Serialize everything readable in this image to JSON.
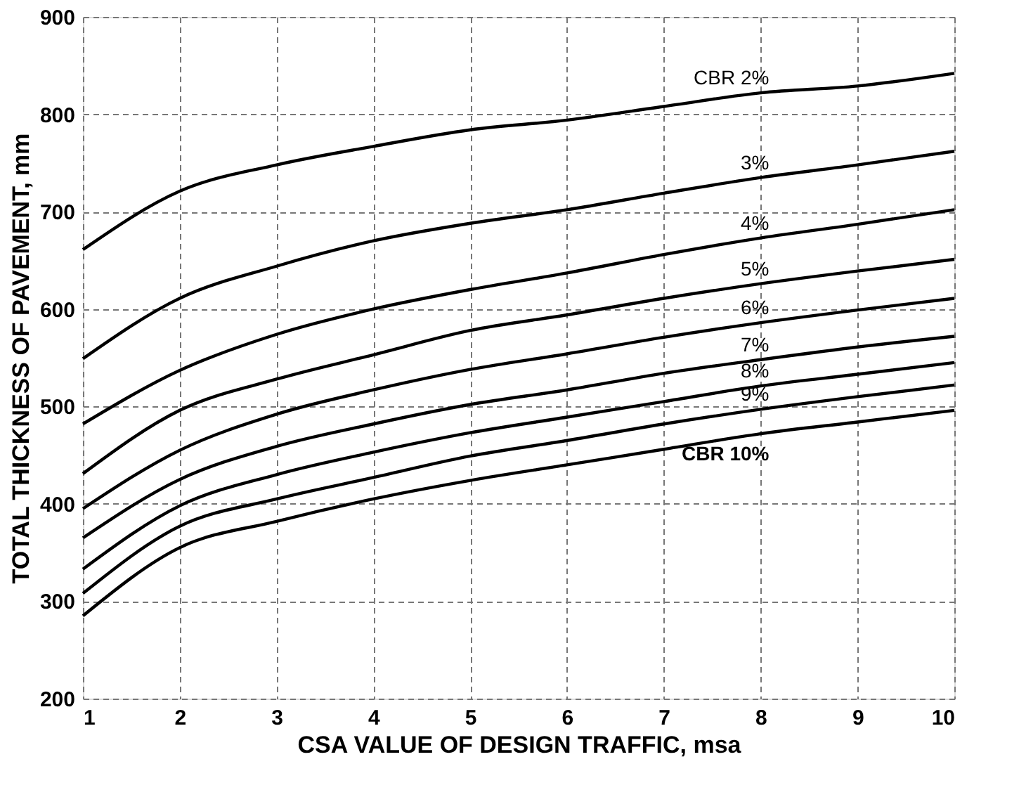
{
  "chart_data": {
    "type": "line",
    "xlabel": "CSA VALUE OF DESIGN TRAFFIC, msa",
    "ylabel": "TOTAL THICKNESS OF PAVEMENT, mm",
    "x": [
      1,
      2,
      3,
      4,
      5,
      6,
      7,
      8,
      9,
      10
    ],
    "series": [
      {
        "name": "CBR 2%",
        "color": "#000000",
        "values": [
          661,
          721,
          748,
          767,
          784,
          794,
          808,
          822,
          829,
          842
        ]
      },
      {
        "name": "3%",
        "color": "#000000",
        "values": [
          549,
          611,
          644,
          670,
          688,
          702,
          719,
          735,
          748,
          762
        ]
      },
      {
        "name": "4%",
        "color": "#000000",
        "values": [
          482,
          537,
          574,
          600,
          620,
          637,
          656,
          673,
          687,
          702
        ]
      },
      {
        "name": "5%",
        "color": "#000000",
        "values": [
          431,
          496,
          528,
          553,
          578,
          594,
          611,
          626,
          639,
          651
        ]
      },
      {
        "name": "6%",
        "color": "#000000",
        "values": [
          395,
          455,
          492,
          517,
          538,
          554,
          571,
          586,
          599,
          611
        ]
      },
      {
        "name": "7%",
        "color": "#000000",
        "values": [
          365,
          425,
          459,
          482,
          502,
          517,
          534,
          548,
          561,
          572
        ]
      },
      {
        "name": "8%",
        "color": "#000000",
        "values": [
          333,
          398,
          430,
          453,
          473,
          489,
          505,
          521,
          533,
          545
        ]
      },
      {
        "name": "9%",
        "color": "#000000",
        "values": [
          308,
          377,
          405,
          427,
          449,
          465,
          482,
          497,
          510,
          522
        ]
      },
      {
        "name": "CBR 10%",
        "color": "#000000",
        "values": [
          285,
          355,
          382,
          405,
          424,
          440,
          456,
          472,
          484,
          496
        ]
      }
    ],
    "xlim": [
      1,
      10
    ],
    "xticks": [
      1,
      2,
      3,
      4,
      5,
      6,
      7,
      8,
      9,
      10
    ],
    "ylim": [
      200,
      900
    ],
    "yticks": [
      200,
      300,
      400,
      500,
      600,
      700,
      800,
      900
    ],
    "grid": true,
    "legend": false,
    "marker": "none",
    "line_style": "solid"
  }
}
